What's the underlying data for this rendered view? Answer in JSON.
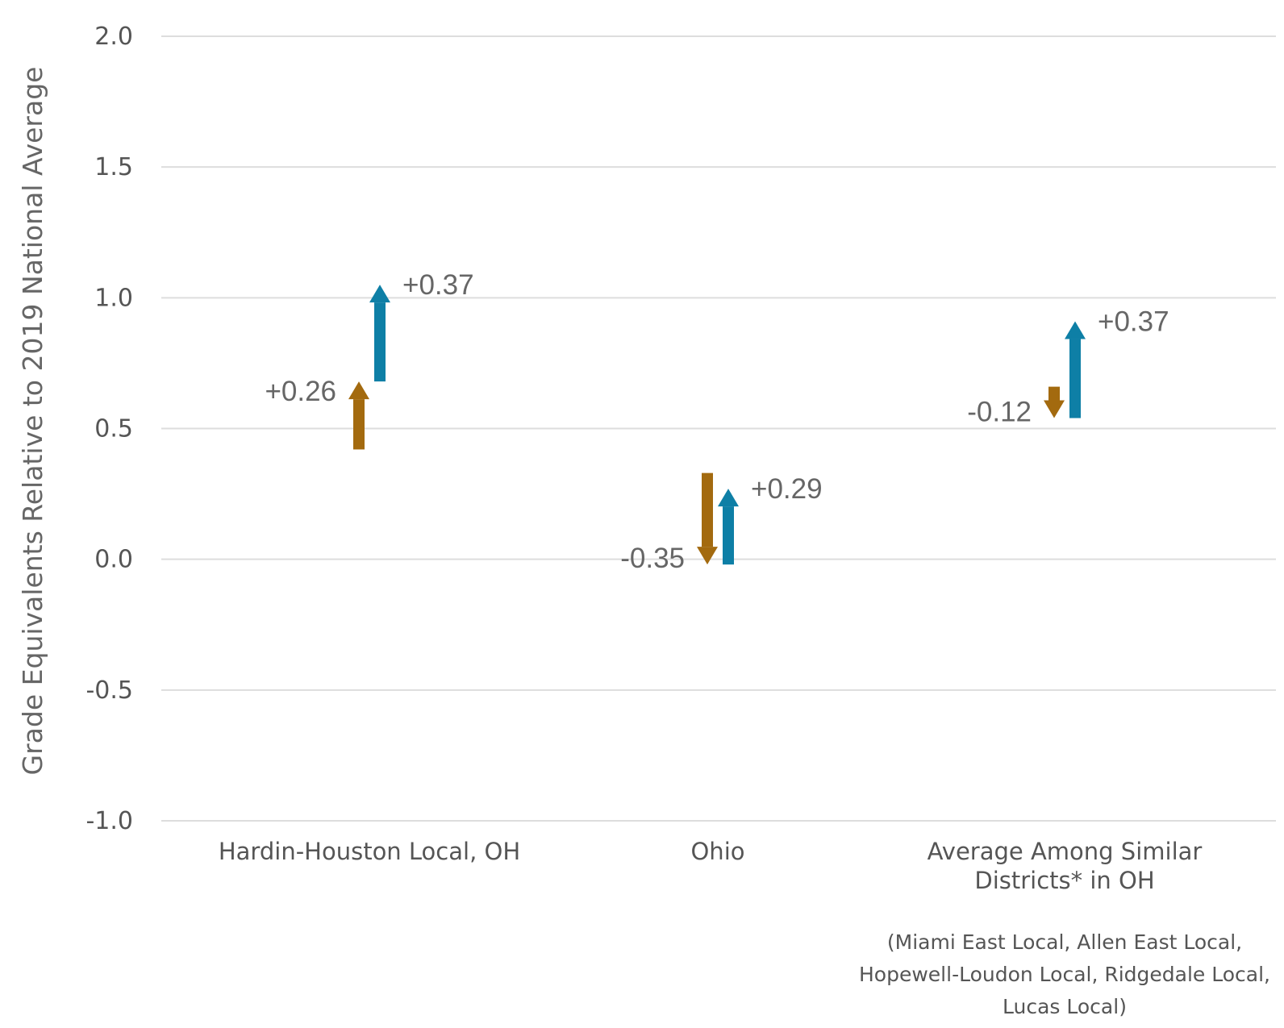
{
  "chart_data": {
    "type": "arrow",
    "ylabel": "Grade Equivalents Relative to 2019 National Average",
    "ylim": [
      -1.0,
      2.0
    ],
    "yticks": [
      2.0,
      1.5,
      1.0,
      0.5,
      0.0,
      -0.5,
      -1.0
    ],
    "ytick_labels": [
      "2.0",
      "1.5",
      "1.0",
      "0.5",
      "0.0",
      "-0.5",
      "-1.0"
    ],
    "grid": true,
    "colors": {
      "series_1": "#a36a0f",
      "series_2": "#0e7fa6"
    },
    "categories": [
      {
        "lines": [
          "Hardin-Houston Local, OH"
        ],
        "note": []
      },
      {
        "lines": [
          "Ohio"
        ],
        "note": []
      },
      {
        "lines": [
          "Average Among Similar",
          "Districts* in OH"
        ],
        "note": [
          "(Miami East Local, Allen East Local,",
          "Hopewell-Loudon Local, Ridgedale Local,",
          "Lucas Local)"
        ]
      }
    ],
    "series": [
      {
        "color": "#a36a0f",
        "points": [
          {
            "start": 0.42,
            "end": 0.68,
            "label": "+0.26"
          },
          {
            "start": 0.33,
            "end": -0.02,
            "label": "-0.35"
          },
          {
            "start": 0.66,
            "end": 0.54,
            "label": "-0.12"
          }
        ]
      },
      {
        "color": "#0e7fa6",
        "points": [
          {
            "start": 0.68,
            "end": 1.05,
            "label": "+0.37"
          },
          {
            "start": -0.02,
            "end": 0.27,
            "label": "+0.29"
          },
          {
            "start": 0.54,
            "end": 0.91,
            "label": "+0.37"
          }
        ]
      }
    ]
  }
}
